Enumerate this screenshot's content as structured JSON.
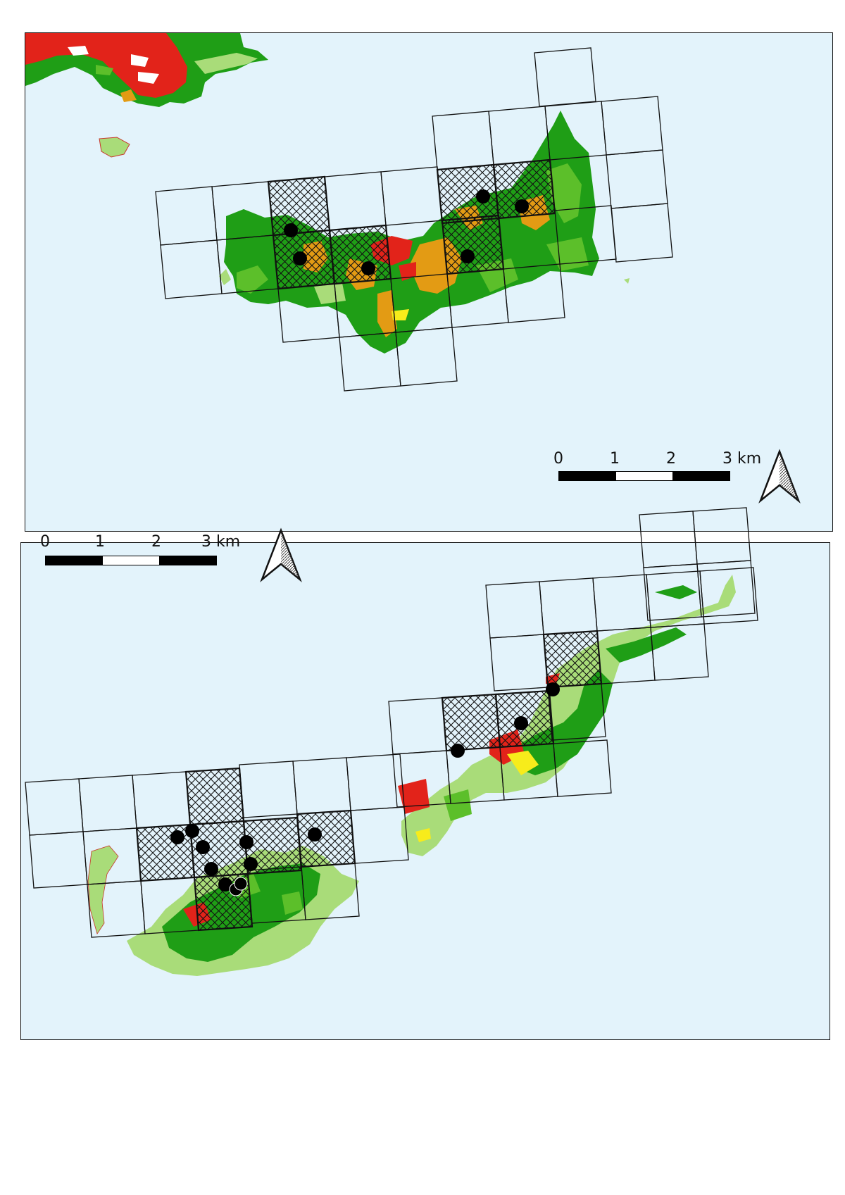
{
  "maps": [
    {
      "id": "top",
      "scale_labels": [
        "0",
        "1",
        "2",
        "3 km"
      ],
      "north_arrow": "north-arrow-icon",
      "colors": {
        "sea": "#e3f3fb",
        "forest": "#1f9e16",
        "scrub": "#5cbf2a",
        "grassland": "#a9dc79",
        "urban": "#e2231a",
        "agriculture": "#e39b14",
        "yellow": "#f7ec1b"
      }
    },
    {
      "id": "bottom",
      "scale_labels": [
        "0",
        "1",
        "2",
        "3 km"
      ],
      "north_arrow": "north-arrow-icon",
      "colors": {
        "sea": "#e3f3fb",
        "forest": "#1f9e16",
        "scrub": "#5cbf2a",
        "grassland": "#a9dc79",
        "urban": "#e2231a",
        "agriculture": "#e39b14",
        "yellow": "#f7ec1b"
      }
    }
  ]
}
